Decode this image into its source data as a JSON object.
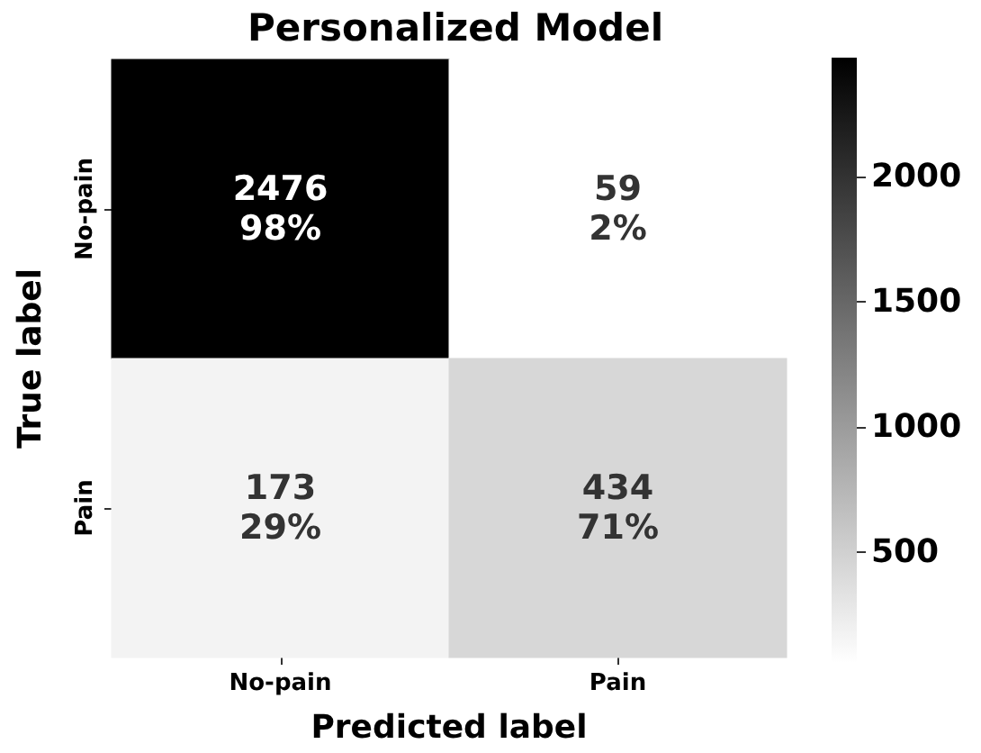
{
  "chart_data": {
    "type": "heatmap",
    "title": "Personalized Model",
    "xlabel": "Predicted label",
    "ylabel": "True label",
    "categories": [
      "No-pain",
      "Pain"
    ],
    "y_categories": [
      "No-pain",
      "Pain"
    ],
    "cells": [
      [
        2476,
        59
      ],
      [
        173,
        434
      ]
    ],
    "cell_labels": [
      [
        "2476\n98%",
        "59\n2%"
      ],
      [
        "173\n29%",
        "434\n71%"
      ]
    ],
    "clim": [
      59,
      2476
    ],
    "cticks": [
      500,
      1000,
      1500,
      2000
    ]
  }
}
